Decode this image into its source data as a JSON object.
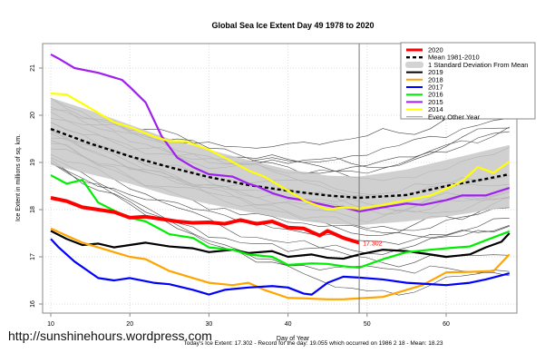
{
  "watermark": "http://sunshinehours.wordpress.com",
  "footer_text": "Today's Ice Extent: 17.302  - Record for the day: 19.055 which occurred on 1986 2 18  - Mean: 18.23",
  "chart_data": {
    "type": "line",
    "title": "Global Sea Ice Extent Day 49 1978 to 2020",
    "xlabel": "Day of Year",
    "ylabel": "Ice Extent in millions of sq. km.",
    "xlim": [
      9,
      69
    ],
    "ylim": [
      15.8,
      21.5
    ],
    "xticks": [
      10,
      20,
      30,
      40,
      50,
      60
    ],
    "yticks": [
      16,
      17,
      18,
      19,
      20,
      21
    ],
    "grid": true,
    "legend_position": "top-right",
    "current_day_marker": 49,
    "current_value_label": "17.302",
    "legend": [
      {
        "label": "2020",
        "color": "#ff0000",
        "style": "thick"
      },
      {
        "label": "Mean 1981-2010",
        "color": "#000000",
        "style": "dashed"
      },
      {
        "label": "1 Standard Deviation From Mean",
        "color": "#d3d3d3",
        "style": "band"
      },
      {
        "label": "2019",
        "color": "#000000",
        "style": "solid"
      },
      {
        "label": "2018",
        "color": "#ffa500",
        "style": "solid"
      },
      {
        "label": "2017",
        "color": "#0000ff",
        "style": "solid"
      },
      {
        "label": "2016",
        "color": "#00ee00",
        "style": "solid"
      },
      {
        "label": "2015",
        "color": "#a020f0",
        "style": "solid"
      },
      {
        "label": "2014",
        "color": "#ffff00",
        "style": "solid"
      },
      {
        "label": "Every Other Year",
        "color": "#555555",
        "style": "thin"
      }
    ],
    "band": {
      "x": [
        10,
        15,
        20,
        25,
        30,
        35,
        40,
        45,
        49,
        55,
        60,
        65,
        68
      ],
      "upper": [
        20.37,
        20.1,
        19.8,
        19.5,
        19.27,
        19.05,
        18.85,
        18.72,
        18.7,
        18.85,
        19.05,
        19.25,
        19.37
      ],
      "lower": [
        18.95,
        18.75,
        18.55,
        18.3,
        18.12,
        17.95,
        17.8,
        17.7,
        17.67,
        17.75,
        17.85,
        17.98,
        18.06
      ]
    },
    "mean": {
      "x": [
        10,
        15,
        20,
        25,
        30,
        35,
        40,
        45,
        49,
        55,
        60,
        65,
        68
      ],
      "y": [
        19.71,
        19.4,
        19.13,
        18.9,
        18.69,
        18.52,
        18.4,
        18.3,
        18.25,
        18.31,
        18.5,
        18.65,
        18.75
      ]
    },
    "series": [
      {
        "name": "2019",
        "color": "#000000",
        "width": 2.2,
        "x": [
          10,
          12,
          14,
          16,
          18,
          20,
          22,
          25,
          28,
          30,
          33,
          35,
          38,
          40,
          43,
          45,
          47,
          49,
          52,
          55,
          58,
          60,
          63,
          65,
          67,
          68
        ],
        "y": [
          17.55,
          17.38,
          17.25,
          17.28,
          17.2,
          17.25,
          17.3,
          17.22,
          17.18,
          17.1,
          17.15,
          17.08,
          17.12,
          17.0,
          17.05,
          16.98,
          16.96,
          17.05,
          17.15,
          17.12,
          17.05,
          17.0,
          17.05,
          17.2,
          17.32,
          17.5
        ]
      },
      {
        "name": "2018",
        "color": "#ffa500",
        "width": 2.2,
        "x": [
          10,
          12,
          14,
          16,
          18,
          20,
          22,
          25,
          28,
          30,
          33,
          35,
          37,
          40,
          42,
          45,
          47,
          49,
          52,
          55,
          57,
          60,
          63,
          66,
          68
        ],
        "y": [
          17.6,
          17.45,
          17.3,
          17.2,
          17.1,
          17.0,
          16.95,
          16.7,
          16.55,
          16.45,
          16.4,
          16.45,
          16.3,
          16.13,
          16.12,
          16.1,
          16.1,
          16.12,
          16.15,
          16.3,
          16.4,
          16.67,
          16.68,
          16.7,
          17.05
        ]
      },
      {
        "name": "2017",
        "color": "#0000ff",
        "width": 2.2,
        "x": [
          10,
          11,
          13,
          16,
          18,
          20,
          23,
          25,
          28,
          30,
          32,
          35,
          38,
          40,
          42,
          43,
          45,
          47,
          49,
          52,
          55,
          58,
          60,
          63,
          65,
          68
        ],
        "y": [
          17.38,
          17.2,
          16.9,
          16.55,
          16.5,
          16.55,
          16.45,
          16.42,
          16.3,
          16.2,
          16.3,
          16.35,
          16.38,
          16.35,
          16.22,
          16.2,
          16.45,
          16.58,
          16.56,
          16.52,
          16.45,
          16.42,
          16.4,
          16.45,
          16.52,
          16.65
        ]
      },
      {
        "name": "2016",
        "color": "#00ee00",
        "width": 2.2,
        "x": [
          10,
          12,
          14,
          16,
          18,
          20,
          22,
          25,
          28,
          30,
          33,
          35,
          38,
          40,
          43,
          45,
          47,
          49,
          52,
          55,
          58,
          60,
          63,
          65,
          68
        ],
        "y": [
          18.73,
          18.55,
          18.63,
          18.15,
          17.98,
          17.83,
          17.75,
          17.48,
          17.4,
          17.2,
          17.15,
          17.05,
          17.0,
          16.83,
          16.86,
          16.85,
          16.8,
          16.77,
          16.95,
          17.1,
          17.15,
          17.18,
          17.22,
          17.35,
          17.54
        ]
      },
      {
        "name": "2015",
        "color": "#a020f0",
        "width": 2.2,
        "x": [
          10,
          11,
          13,
          16,
          19,
          20,
          22,
          24,
          26,
          28,
          30,
          33,
          35,
          36,
          38,
          40,
          42,
          44,
          46,
          47,
          49,
          52,
          55,
          57,
          60,
          62,
          65,
          68
        ],
        "y": [
          21.29,
          21.2,
          21.0,
          20.9,
          20.75,
          20.6,
          20.27,
          19.56,
          19.1,
          18.9,
          18.75,
          18.7,
          18.55,
          18.5,
          18.35,
          18.25,
          18.2,
          18.12,
          18.05,
          18.06,
          17.96,
          18.05,
          18.13,
          18.1,
          18.2,
          18.3,
          18.3,
          18.46
        ]
      },
      {
        "name": "2014",
        "color": "#ffff00",
        "width": 2.2,
        "x": [
          10,
          12,
          15,
          18,
          20,
          23,
          25,
          27,
          30,
          32,
          35,
          37,
          40,
          42,
          45,
          47,
          49,
          52,
          55,
          58,
          60,
          62,
          64,
          66,
          68
        ],
        "y": [
          20.46,
          20.44,
          20.15,
          19.85,
          19.75,
          19.55,
          19.45,
          19.45,
          19.27,
          19.1,
          18.83,
          18.7,
          18.4,
          18.2,
          18.0,
          18.05,
          18.02,
          18.1,
          18.2,
          18.3,
          18.44,
          18.6,
          18.9,
          18.78,
          19.02
        ]
      },
      {
        "name": "2020",
        "color": "#ff0000",
        "width": 4,
        "x": [
          10,
          12,
          14,
          16,
          18,
          20,
          22,
          24,
          26,
          28,
          30,
          32,
          34,
          36,
          38,
          40,
          42,
          44,
          45,
          47,
          49
        ],
        "y": [
          18.25,
          18.18,
          18.05,
          18.0,
          17.95,
          17.83,
          17.85,
          17.8,
          17.75,
          17.72,
          17.73,
          17.7,
          17.78,
          17.7,
          17.75,
          17.62,
          17.6,
          17.45,
          17.55,
          17.4,
          17.3
        ]
      }
    ]
  }
}
